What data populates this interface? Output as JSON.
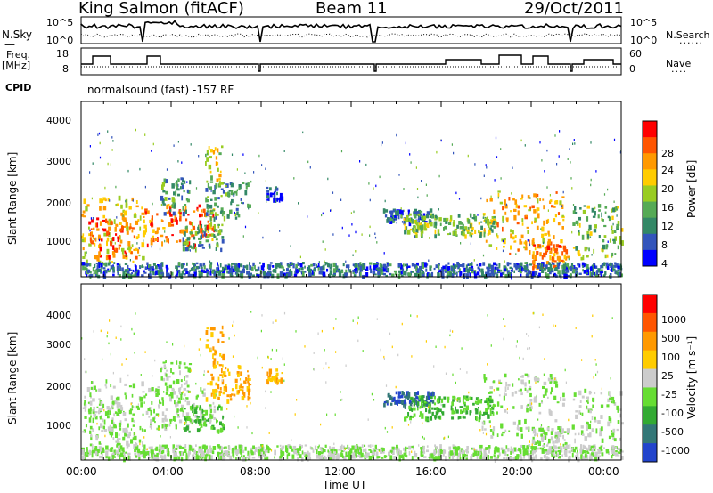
{
  "header": {
    "station": "King Salmon (fitACF)",
    "beam": "Beam 11",
    "date": "29/Oct/2011"
  },
  "param_panel": {
    "nsky_label": "N.Sky",
    "nsky_ticks": [
      "10^5",
      "10^0"
    ],
    "nsky_right_ticks": [
      "10^5",
      "10^0"
    ],
    "nsearch_label": "N.Search",
    "freq_label": "Freq.",
    "freq_unit": "[MHz]",
    "freq_ticks": [
      "18",
      "8"
    ],
    "nave_ticks": [
      "60",
      "0"
    ],
    "nave_label": "Nave",
    "cpid_label": "CPID",
    "cpid_text": "normalsound (fast) -157 RF"
  },
  "chart_data": [
    {
      "type": "heatmap",
      "name": "power-panel",
      "ylabel": "Slant Range [km]",
      "y_ticks": [
        "1000",
        "2000",
        "3000",
        "4000"
      ],
      "ylim": [
        180,
        4600
      ],
      "xlim": [
        0,
        24
      ],
      "x_ticks": [
        0,
        4,
        8,
        12,
        16,
        20,
        24
      ],
      "colorbar": {
        "label": "Power [dB]",
        "ticks": [
          "4",
          "8",
          "12",
          "16",
          "20",
          "24",
          "28"
        ],
        "colors": [
          "#0000ff",
          "#3355bb",
          "#338866",
          "#55aa55",
          "#99cc22",
          "#ffcc00",
          "#ff9900",
          "#ff5500",
          "#ff0000"
        ]
      }
    },
    {
      "type": "heatmap",
      "name": "velocity-panel",
      "ylabel": "Slant Range [km]",
      "y_ticks": [
        "1000",
        "2000",
        "3000",
        "4000"
      ],
      "ylim": [
        180,
        4600
      ],
      "xlim": [
        0,
        24
      ],
      "x_ticks": [
        0,
        4,
        8,
        12,
        16,
        20,
        24
      ],
      "xlabel": "Time UT",
      "x_tick_labels": [
        "00:00",
        "04:00",
        "08:00",
        "12:00",
        "16:00",
        "20:00",
        "00:00"
      ],
      "colorbar": {
        "label": "Velocity [m s⁻¹]",
        "ticks": [
          "1000",
          "500",
          "100",
          "25",
          "-25",
          "-100",
          "-500",
          "-1000"
        ],
        "colors": [
          "#2244cc",
          "#337777",
          "#33aa33",
          "#66dd33",
          "#cccccc",
          "#ffcc00",
          "#ff9900",
          "#ff5500",
          "#ff0000"
        ]
      }
    }
  ]
}
